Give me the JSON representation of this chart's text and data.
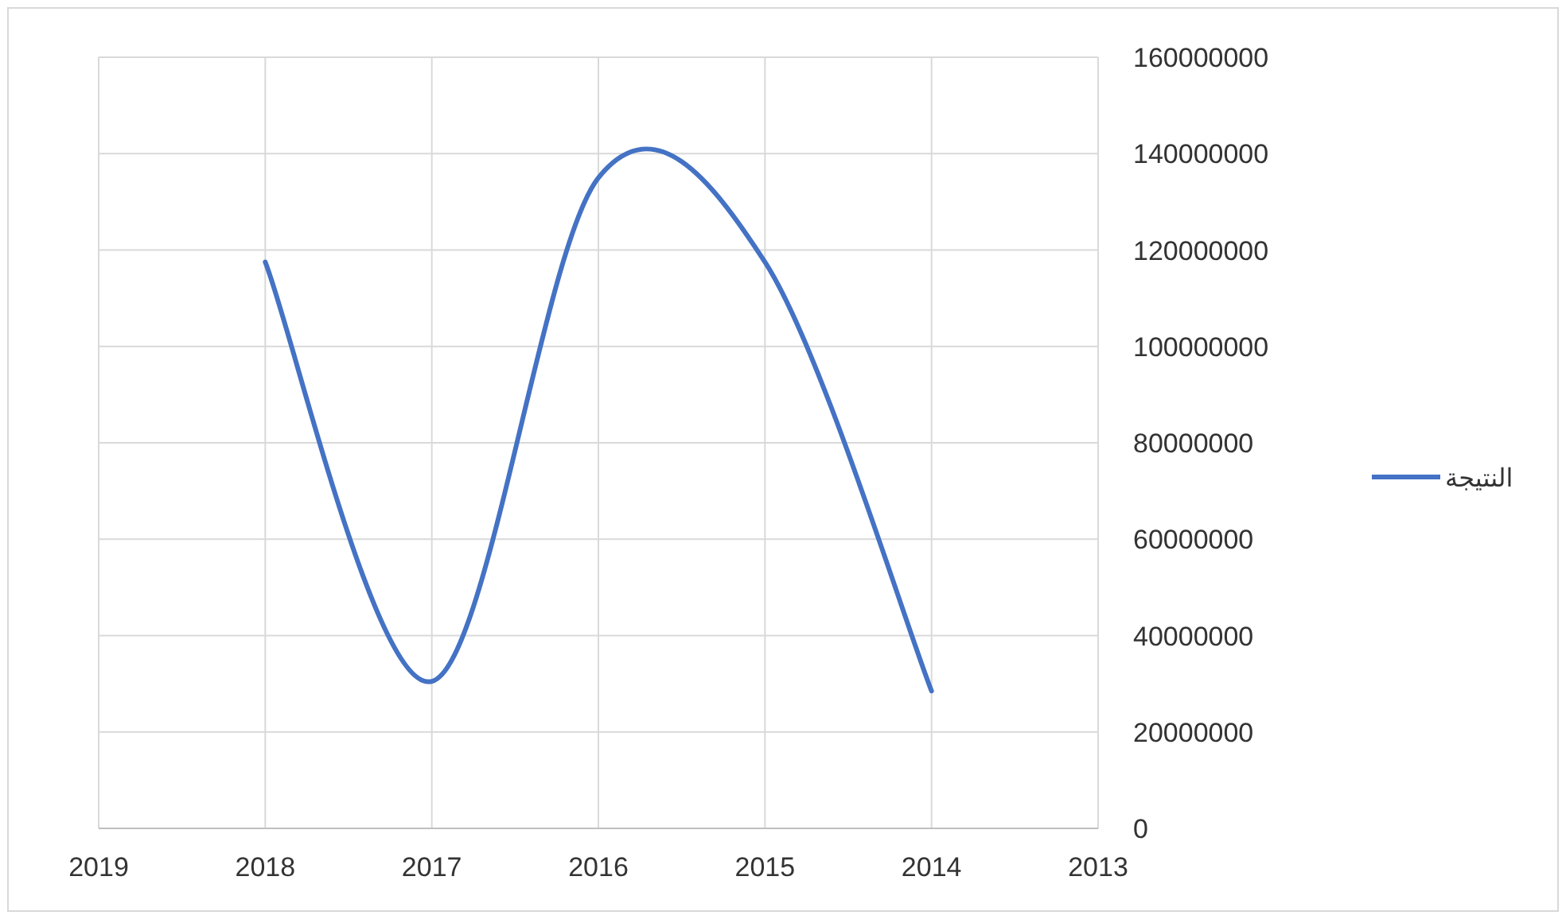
{
  "chart_data": {
    "type": "line",
    "x": [
      2018,
      2017,
      2016,
      2015,
      2014
    ],
    "series": [
      {
        "name": "النتيجة",
        "color": "#4472c4",
        "values": [
          117500000,
          30500000,
          135000000,
          117500000,
          28500000
        ]
      }
    ],
    "xlim": [
      2019,
      2013
    ],
    "xticks": [
      2019,
      2018,
      2017,
      2016,
      2015,
      2014,
      2013
    ],
    "ylim": [
      0,
      160000000
    ],
    "yticks": [
      0,
      20000000,
      40000000,
      60000000,
      80000000,
      100000000,
      120000000,
      140000000,
      160000000
    ],
    "grid": true,
    "legend": "right",
    "marker": "none",
    "line_style": "solid"
  }
}
